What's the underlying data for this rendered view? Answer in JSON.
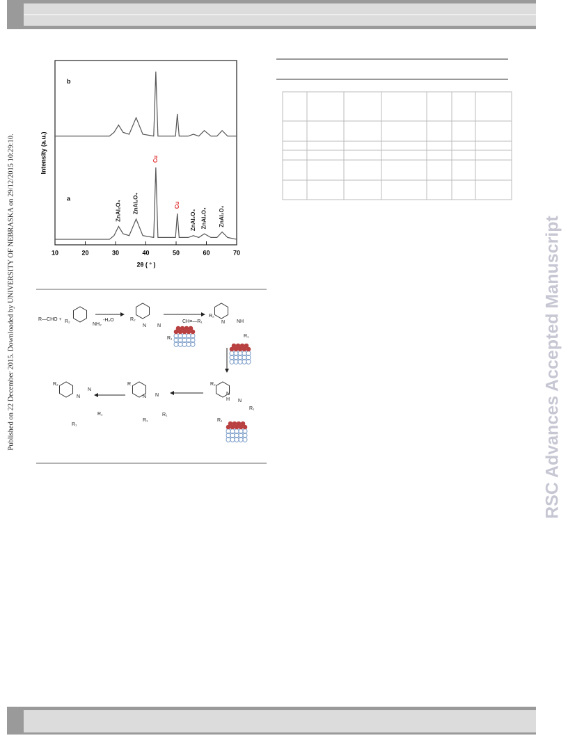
{
  "sidebar": "Published on 22 December 2015. Downloaded by UNIVERSITY OF NEBRASKA on 29/12/2015 10:29:10.",
  "watermark": "RSC Advances Accepted Manuscript",
  "chart_data": {
    "type": "line",
    "xlabel": "2θ ( ° )",
    "ylabel": "Intensity (a.u.)",
    "x": [
      10,
      28,
      29.5,
      31,
      32.5,
      34.5,
      36.8,
      39,
      42.6,
      43.3,
      44,
      49.8,
      50.4,
      51,
      54,
      55.7,
      57.5,
      59.3,
      61.5,
      63.5,
      65.2,
      67,
      70
    ],
    "series": [
      {
        "name": "a",
        "color": "#555555",
        "values": [
          3,
          3,
          5,
          10,
          6,
          5,
          14,
          5,
          4,
          42,
          4,
          4,
          17,
          4,
          4,
          5,
          4,
          6,
          4,
          4,
          7,
          4,
          3
        ]
      },
      {
        "name": "b",
        "color": "#555555",
        "values": [
          59,
          59,
          61,
          65,
          61,
          60,
          69,
          60,
          59,
          94,
          59,
          59,
          71,
          59,
          59,
          60,
          59,
          62,
          59,
          59,
          62,
          59,
          59
        ]
      }
    ],
    "xlim": [
      10,
      70
    ],
    "ylim": [
      0,
      100
    ],
    "xticks": [
      10,
      20,
      30,
      40,
      50,
      60,
      70
    ],
    "annotations": [
      {
        "text": "ZnAl₂O₄",
        "x": 31,
        "y": 11,
        "color": "#222222"
      },
      {
        "text": "ZnAl₂O₄",
        "x": 36.8,
        "y": 15,
        "color": "#222222"
      },
      {
        "text": "Cu",
        "x": 43.3,
        "y": 43,
        "color": "#e03030"
      },
      {
        "text": "Cu",
        "x": 50.4,
        "y": 18,
        "color": "#e03030"
      },
      {
        "text": "ZnAl₂O₄",
        "x": 55.7,
        "y": 6,
        "color": "#222222"
      },
      {
        "text": "ZnAl₂O₄",
        "x": 59.3,
        "y": 7,
        "color": "#222222"
      },
      {
        "text": "ZnAl₂O₄",
        "x": 65.2,
        "y": 8,
        "color": "#222222"
      }
    ]
  },
  "scheme": {
    "labels": [
      "R—CHO +",
      "R₂",
      "NH₂",
      "-H₂O",
      "R₂",
      "N",
      "N",
      "R₁",
      "CH≡—R₁",
      "R₂",
      "N",
      "NH",
      "R₁",
      "R₂",
      "N",
      "N",
      "R₁",
      "R₁",
      "R",
      "N",
      "N",
      "R₁",
      "R₁",
      "R₂",
      "N",
      "H",
      "N",
      "R₁",
      "R₁"
    ]
  }
}
